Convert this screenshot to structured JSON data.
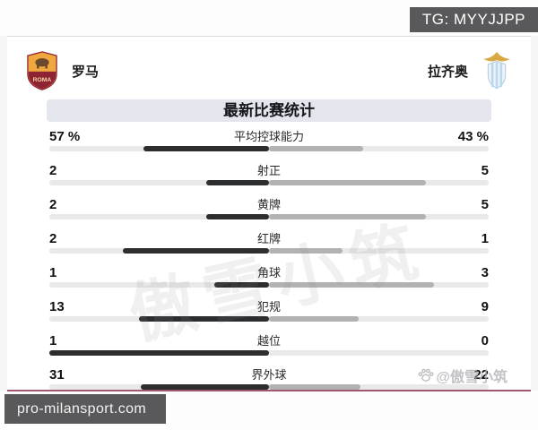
{
  "overlays": {
    "tg_badge": "TG: MYYJJPP",
    "site_badge": "pro-milansport.com",
    "watermark_center": "傲雪小筑",
    "watermark_corner": "@傲雪小筑"
  },
  "header": {
    "home_team": "罗马",
    "away_team": "拉齐奥",
    "home_badge_text": "ROMA",
    "title": "最新比赛统计"
  },
  "stats": {
    "rows": [
      {
        "label": "平均控球能力",
        "home": 57,
        "away": 43,
        "home_display": "57 %",
        "away_display": "43 %"
      },
      {
        "label": "射正",
        "home": 2,
        "away": 5,
        "home_display": "2",
        "away_display": "5"
      },
      {
        "label": "黄牌",
        "home": 2,
        "away": 5,
        "home_display": "2",
        "away_display": "5"
      },
      {
        "label": "红牌",
        "home": 2,
        "away": 1,
        "home_display": "2",
        "away_display": "1"
      },
      {
        "label": "角球",
        "home": 1,
        "away": 3,
        "home_display": "1",
        "away_display": "3"
      },
      {
        "label": "犯规",
        "home": 13,
        "away": 9,
        "home_display": "13",
        "away_display": "9"
      },
      {
        "label": "越位",
        "home": 1,
        "away": 0,
        "home_display": "1",
        "away_display": "0"
      },
      {
        "label": "界外球",
        "home": 31,
        "away": 22,
        "home_display": "31",
        "away_display": "22"
      }
    ]
  },
  "chart_data": {
    "type": "bar",
    "variant": "opposed-horizontal-comparison",
    "title": "最新比赛统计",
    "categories": [
      "平均控球能力",
      "射正",
      "黄牌",
      "红牌",
      "角球",
      "犯规",
      "越位",
      "界外球"
    ],
    "series": [
      {
        "name": "罗马",
        "color": "#2b2d2e",
        "side": "left",
        "values": [
          57,
          2,
          2,
          2,
          1,
          13,
          1,
          31
        ]
      },
      {
        "name": "拉齐奥",
        "color": "#b2b2b2",
        "side": "right",
        "values": [
          43,
          5,
          5,
          1,
          3,
          9,
          0,
          22
        ]
      }
    ],
    "value_suffix_row_0": "%",
    "grid": false,
    "legend_position": "team-names-top",
    "bar_rule": "bar length = value / (home + away) of the half-track width, extending from center"
  },
  "colors": {
    "badge_bg": "#59595b",
    "title_bar_bg": "#e3e6ec",
    "track": "#e9e9e9",
    "home_bar": "#2b2d2e",
    "away_bar": "#b2b2b2",
    "card_bottom_line": "#a0596c",
    "roma_gold": "#efa73f",
    "roma_maroon": "#8e2433",
    "lazio_gold": "#d9a843",
    "lazio_blue": "#bcd6ea"
  }
}
